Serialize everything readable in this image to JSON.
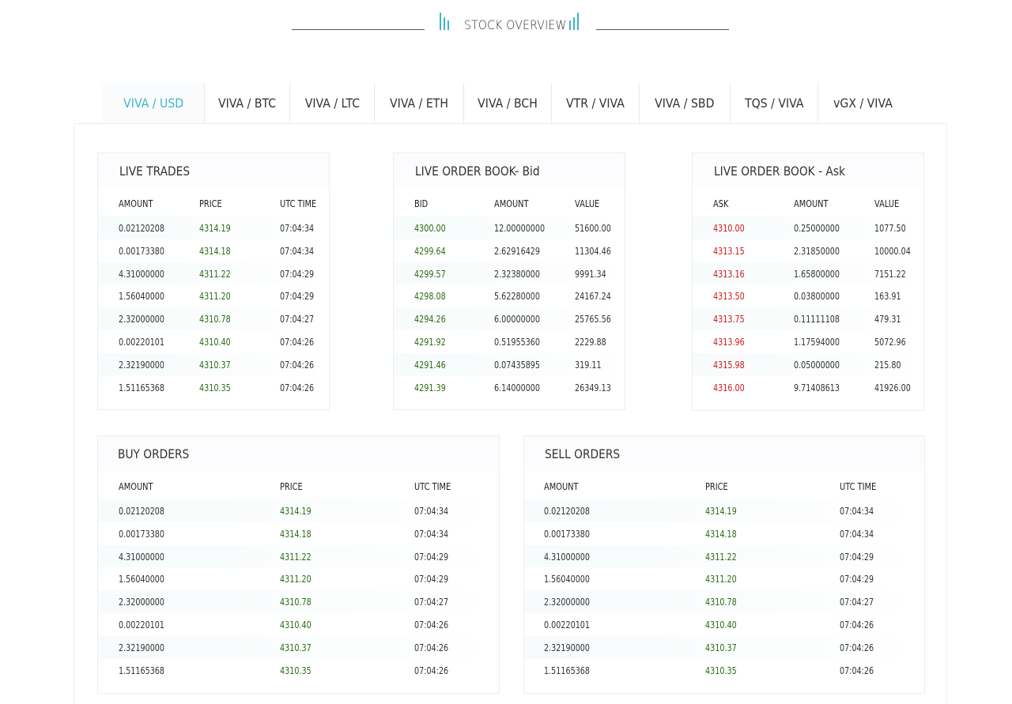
{
  "header": {
    "title": "STOCK OVERVIEW"
  },
  "colors": {
    "accent": "#3fb6c8",
    "up": "#2e6b16",
    "down": "#cc1e1e"
  },
  "tabs": [
    {
      "label": "VIVA / USD",
      "active": true
    },
    {
      "label": "VIVA / BTC"
    },
    {
      "label": "VIVA / LTC"
    },
    {
      "label": "VIVA / ETH"
    },
    {
      "label": "VIVA / BCH"
    },
    {
      "label": "VTR / VIVA"
    },
    {
      "label": "VIVA / SBD"
    },
    {
      "label": "TQS / VIVA"
    },
    {
      "label": "vGX / VIVA"
    }
  ],
  "live_trades": {
    "title": "LIVE TRADES",
    "columns": [
      "AMOUNT",
      "PRICE",
      "UTC TIME"
    ],
    "rows": [
      [
        "0.02120208",
        "4314.19",
        "07:04:34"
      ],
      [
        "0.00173380",
        "4314.18",
        "07:04:34"
      ],
      [
        "4.31000000",
        "4311.22",
        "07:04:29"
      ],
      [
        "1.56040000",
        "4311.20",
        "07:04:29"
      ],
      [
        "2.32000000",
        "4310.78",
        "07:04:27"
      ],
      [
        "0.00220101",
        "4310.40",
        "07:04:26"
      ],
      [
        "2.32190000",
        "4310.37",
        "07:04:26"
      ],
      [
        "1.51165368",
        "4310.35",
        "07:04:26"
      ]
    ]
  },
  "order_book_bid": {
    "title": "LIVE ORDER BOOK- Bid",
    "columns": [
      "BID",
      "AMOUNT",
      "VALUE"
    ],
    "rows": [
      [
        "4300.00",
        "12.00000000",
        "51600.00"
      ],
      [
        "4299.64",
        "2.62916429",
        "11304.46"
      ],
      [
        "4299.57",
        "2.32380000",
        "9991.34"
      ],
      [
        "4298.08",
        "5.62280000",
        "24167.24"
      ],
      [
        "4294.26",
        "6.00000000",
        "25765.56"
      ],
      [
        "4291.92",
        "0.51955360",
        "2229.88"
      ],
      [
        "4291.46",
        "0.07435895",
        "319.11"
      ],
      [
        "4291.39",
        "6.14000000",
        "26349.13"
      ]
    ]
  },
  "order_book_ask": {
    "title": "LIVE ORDER BOOK - Ask",
    "columns": [
      "ASK",
      "AMOUNT",
      "VALUE"
    ],
    "rows": [
      [
        "4310.00",
        "0.25000000",
        "1077.50"
      ],
      [
        "4313.15",
        "2.31850000",
        "10000.04"
      ],
      [
        "4313.16",
        "1.65800000",
        "7151.22"
      ],
      [
        "4313.50",
        "0.03800000",
        "163.91"
      ],
      [
        "4313.75",
        "0.11111108",
        "479.31"
      ],
      [
        "4313.96",
        "1.17594000",
        "5072.96"
      ],
      [
        "4315.98",
        "0.05000000",
        "215.80"
      ],
      [
        "4316.00",
        "9.71408613",
        "41926.00"
      ]
    ]
  },
  "buy_orders": {
    "title": "BUY ORDERS",
    "columns": [
      "AMOUNT",
      "PRICE",
      "UTC TIME"
    ],
    "rows": [
      [
        "0.02120208",
        "4314.19",
        "07:04:34"
      ],
      [
        "0.00173380",
        "4314.18",
        "07:04:34"
      ],
      [
        "4.31000000",
        "4311.22",
        "07:04:29"
      ],
      [
        "1.56040000",
        "4311.20",
        "07:04:29"
      ],
      [
        "2.32000000",
        "4310.78",
        "07:04:27"
      ],
      [
        "0.00220101",
        "4310.40",
        "07:04:26"
      ],
      [
        "2.32190000",
        "4310.37",
        "07:04:26"
      ],
      [
        "1.51165368",
        "4310.35",
        "07:04:26"
      ]
    ]
  },
  "sell_orders": {
    "title": "SELL ORDERS",
    "columns": [
      "AMOUNT",
      "PRICE",
      "UTC TIME"
    ],
    "rows": [
      [
        "0.02120208",
        "4314.19",
        "07:04:34"
      ],
      [
        "0.00173380",
        "4314.18",
        "07:04:34"
      ],
      [
        "4.31000000",
        "4311.22",
        "07:04:29"
      ],
      [
        "1.56040000",
        "4311.20",
        "07:04:29"
      ],
      [
        "2.32000000",
        "4310.78",
        "07:04:27"
      ],
      [
        "0.00220101",
        "4310.40",
        "07:04:26"
      ],
      [
        "2.32190000",
        "4310.37",
        "07:04:26"
      ],
      [
        "1.51165368",
        "4310.35",
        "07:04:26"
      ]
    ]
  }
}
